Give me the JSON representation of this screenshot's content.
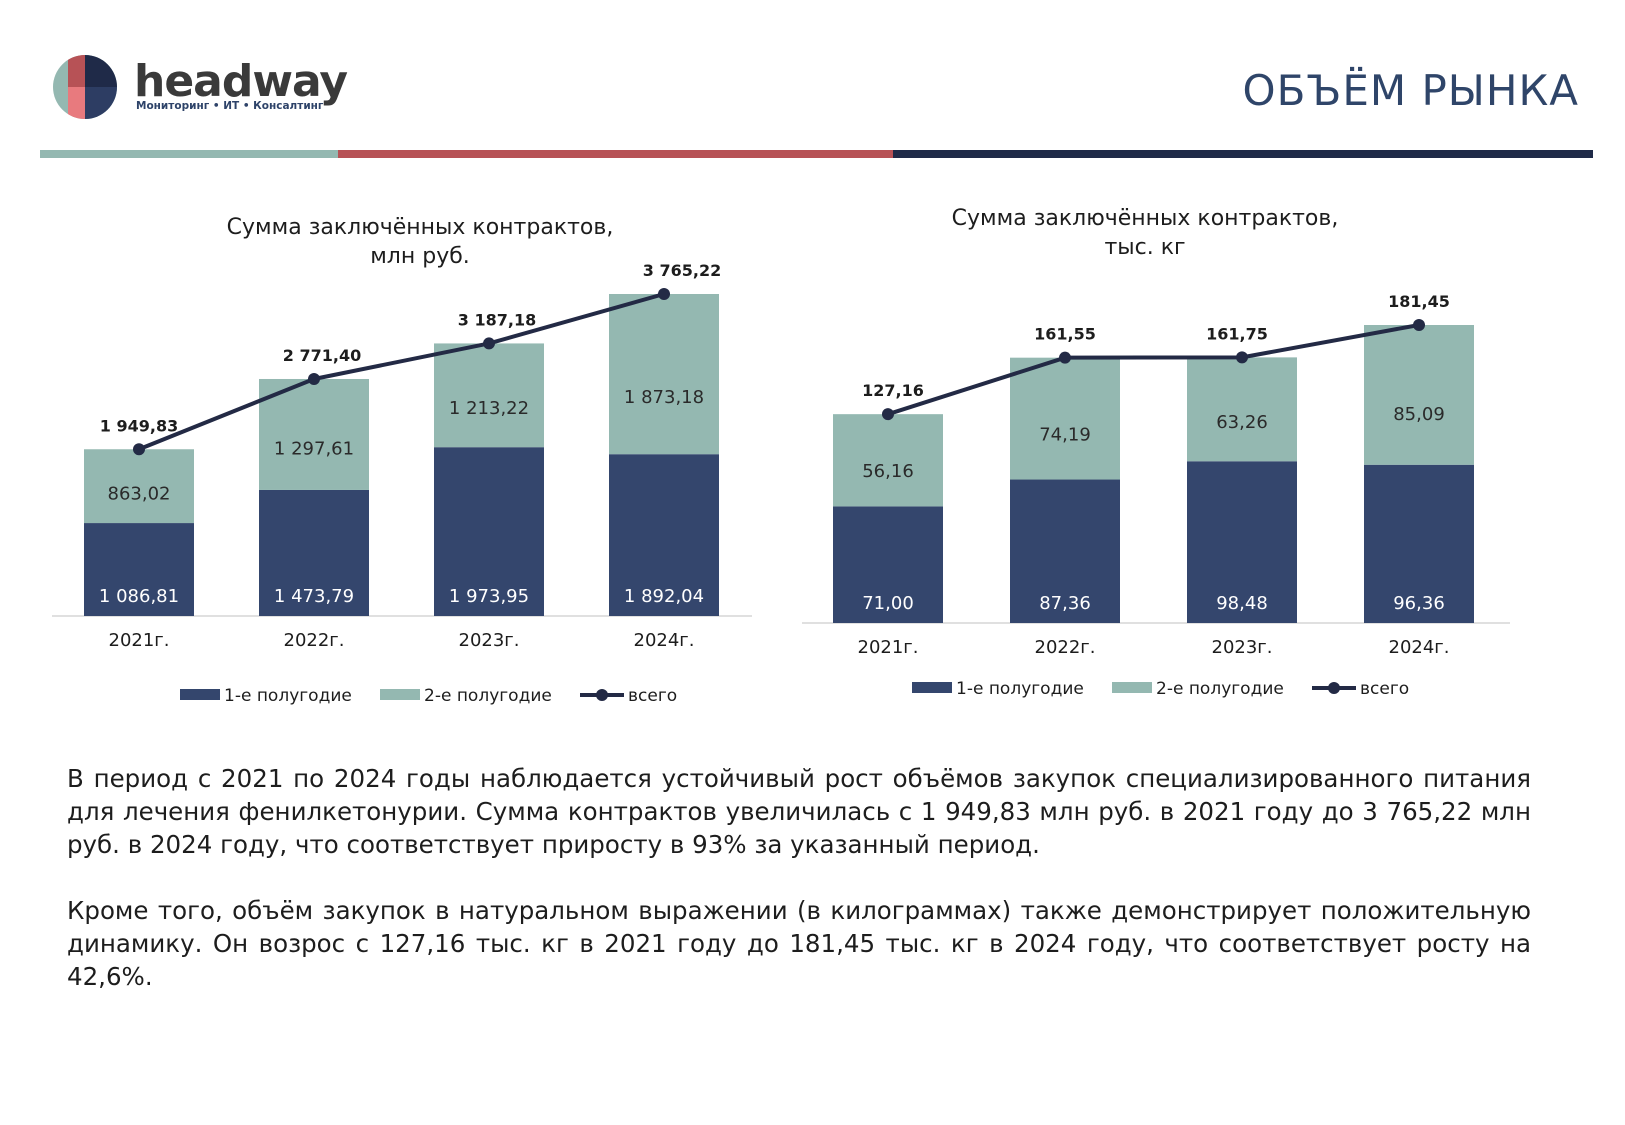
{
  "brand": {
    "name": "headway",
    "tagline": "Мониторинг • ИТ • Консалтинг",
    "colors": {
      "teal": "#94b8b1",
      "red": "#b75256",
      "navy": "#1f2a48",
      "pink": "#e87a7e",
      "dark_navy": "#2d3d63"
    }
  },
  "page_title": "ОБЪЁМ РЫНКА",
  "chart_data": [
    {
      "type": "bar",
      "stacked": true,
      "title": "Сумма заключённых контрактов,",
      "subtitle": "млн руб.",
      "categories": [
        "2021г.",
        "2022г.",
        "2023г.",
        "2024г."
      ],
      "series": [
        {
          "name": "1-е полугодие",
          "kind": "bar",
          "color": "#34466d",
          "values": [
            1086.81,
            1473.79,
            1973.95,
            1892.04
          ],
          "labels": [
            "1 086,81",
            "1 473,79",
            "1 973,95",
            "1 892,04"
          ]
        },
        {
          "name": "2-е полугодие",
          "kind": "bar",
          "color": "#94b8b1",
          "values": [
            863.02,
            1297.61,
            1213.22,
            1873.18
          ],
          "labels": [
            "863,02",
            "1 297,61",
            "1 213,22",
            "1 873,18"
          ]
        },
        {
          "name": "всего",
          "kind": "line",
          "color": "#232a45",
          "values": [
            1949.83,
            2771.4,
            3187.18,
            3765.22
          ],
          "labels": [
            "1 949,83",
            "2 771,40",
            "3 187,18",
            "3 765,22"
          ]
        }
      ],
      "ylim": [
        0,
        3765.22
      ],
      "legend": "bottom",
      "grid": false
    },
    {
      "type": "bar",
      "stacked": true,
      "title": "Сумма заключённых контрактов,",
      "subtitle": "тыс. кг",
      "categories": [
        "2021г.",
        "2022г.",
        "2023г.",
        "2024г."
      ],
      "series": [
        {
          "name": "1-е полугодие",
          "kind": "bar",
          "color": "#34466d",
          "values": [
            71.0,
            87.36,
            98.48,
            96.36
          ],
          "labels": [
            "71,00",
            "87,36",
            "98,48",
            "96,36"
          ]
        },
        {
          "name": "2-е полугодие",
          "kind": "bar",
          "color": "#94b8b1",
          "values": [
            56.16,
            74.19,
            63.26,
            85.09
          ],
          "labels": [
            "56,16",
            "74,19",
            "63,26",
            "85,09"
          ]
        },
        {
          "name": "всего",
          "kind": "line",
          "color": "#232a45",
          "values": [
            127.16,
            161.55,
            161.75,
            181.45
          ],
          "labels": [
            "127,16",
            "161,55",
            "161,75",
            "181,45"
          ]
        }
      ],
      "ylim": [
        0,
        181.45
      ],
      "legend": "bottom",
      "grid": false
    }
  ],
  "summary": {
    "paragraph1": "В период с 2021 по 2024 годы наблюдается устойчивый рост объёмов закупок специализированного питания для лечения фенилкетонурии. Сумма контрактов увеличилась с 1 949,83 млн руб. в 2021 году до 3 765,22 млн руб. в 2024 году, что соответствует приросту в 93% за указанный период.",
    "paragraph2": "Кроме того, объём закупок в натуральном выражении (в килограммах) также демонстрирует положительную динамику. Он возрос с 127,16 тыс. кг в 2021 году до 181,45 тыс. кг в 2024 году, что соответствует росту на 42,6%."
  }
}
